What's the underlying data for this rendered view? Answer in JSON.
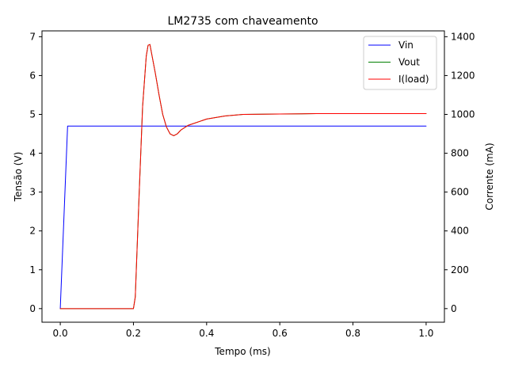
{
  "chart_data": {
    "type": "line",
    "title": "LM2735 com chaveamento",
    "xlabel": "Tempo (ms)",
    "ylabel": "Tensão (V)",
    "ylabel_right": "Corrente (mA)",
    "xlim": [
      -0.05,
      1.05
    ],
    "ylim": [
      -0.35,
      7.15
    ],
    "ylim_right": [
      -70,
      1430
    ],
    "xticks": [
      "0.0",
      "0.2",
      "0.4",
      "0.6",
      "0.8",
      "1.0"
    ],
    "yticks": [
      "0",
      "1",
      "2",
      "3",
      "4",
      "5",
      "6",
      "7"
    ],
    "yticks_right": [
      "0",
      "200",
      "400",
      "600",
      "800",
      "1000",
      "1200",
      "1400"
    ],
    "grid": false,
    "legend_position": "top-right",
    "series": [
      {
        "name": "Vin",
        "axis": "left",
        "color": "#0000ff",
        "x": [
          0.0,
          0.02,
          1.0
        ],
        "y": [
          0.0,
          4.7,
          4.7
        ]
      },
      {
        "name": "Vout",
        "axis": "left",
        "color": "#008000",
        "x": [
          0.0,
          0.2,
          0.205,
          0.215,
          0.225,
          0.235,
          0.24,
          0.245,
          0.25,
          0.26,
          0.27,
          0.28,
          0.29,
          0.3,
          0.31,
          0.32,
          0.33,
          0.35,
          0.4,
          0.45,
          0.5,
          0.6,
          0.7,
          0.8,
          0.9,
          1.0
        ],
        "y": [
          0.0,
          0.0,
          0.3,
          2.8,
          5.2,
          6.5,
          6.78,
          6.8,
          6.55,
          6.05,
          5.5,
          5.0,
          4.68,
          4.5,
          4.45,
          4.5,
          4.6,
          4.72,
          4.88,
          4.96,
          5.0,
          5.01,
          5.02,
          5.02,
          5.02,
          5.02
        ]
      },
      {
        "name": "I(load)",
        "axis": "left",
        "color": "#ff0000",
        "x": [
          0.0,
          0.2,
          0.205,
          0.215,
          0.225,
          0.235,
          0.24,
          0.245,
          0.25,
          0.26,
          0.27,
          0.28,
          0.29,
          0.3,
          0.31,
          0.32,
          0.33,
          0.35,
          0.4,
          0.45,
          0.5,
          0.6,
          0.7,
          0.8,
          0.9,
          1.0
        ],
        "y": [
          0.0,
          0.0,
          0.3,
          2.8,
          5.2,
          6.5,
          6.78,
          6.8,
          6.55,
          6.05,
          5.5,
          5.0,
          4.68,
          4.5,
          4.45,
          4.5,
          4.6,
          4.72,
          4.88,
          4.96,
          5.0,
          5.01,
          5.02,
          5.02,
          5.02,
          5.02
        ]
      }
    ]
  }
}
